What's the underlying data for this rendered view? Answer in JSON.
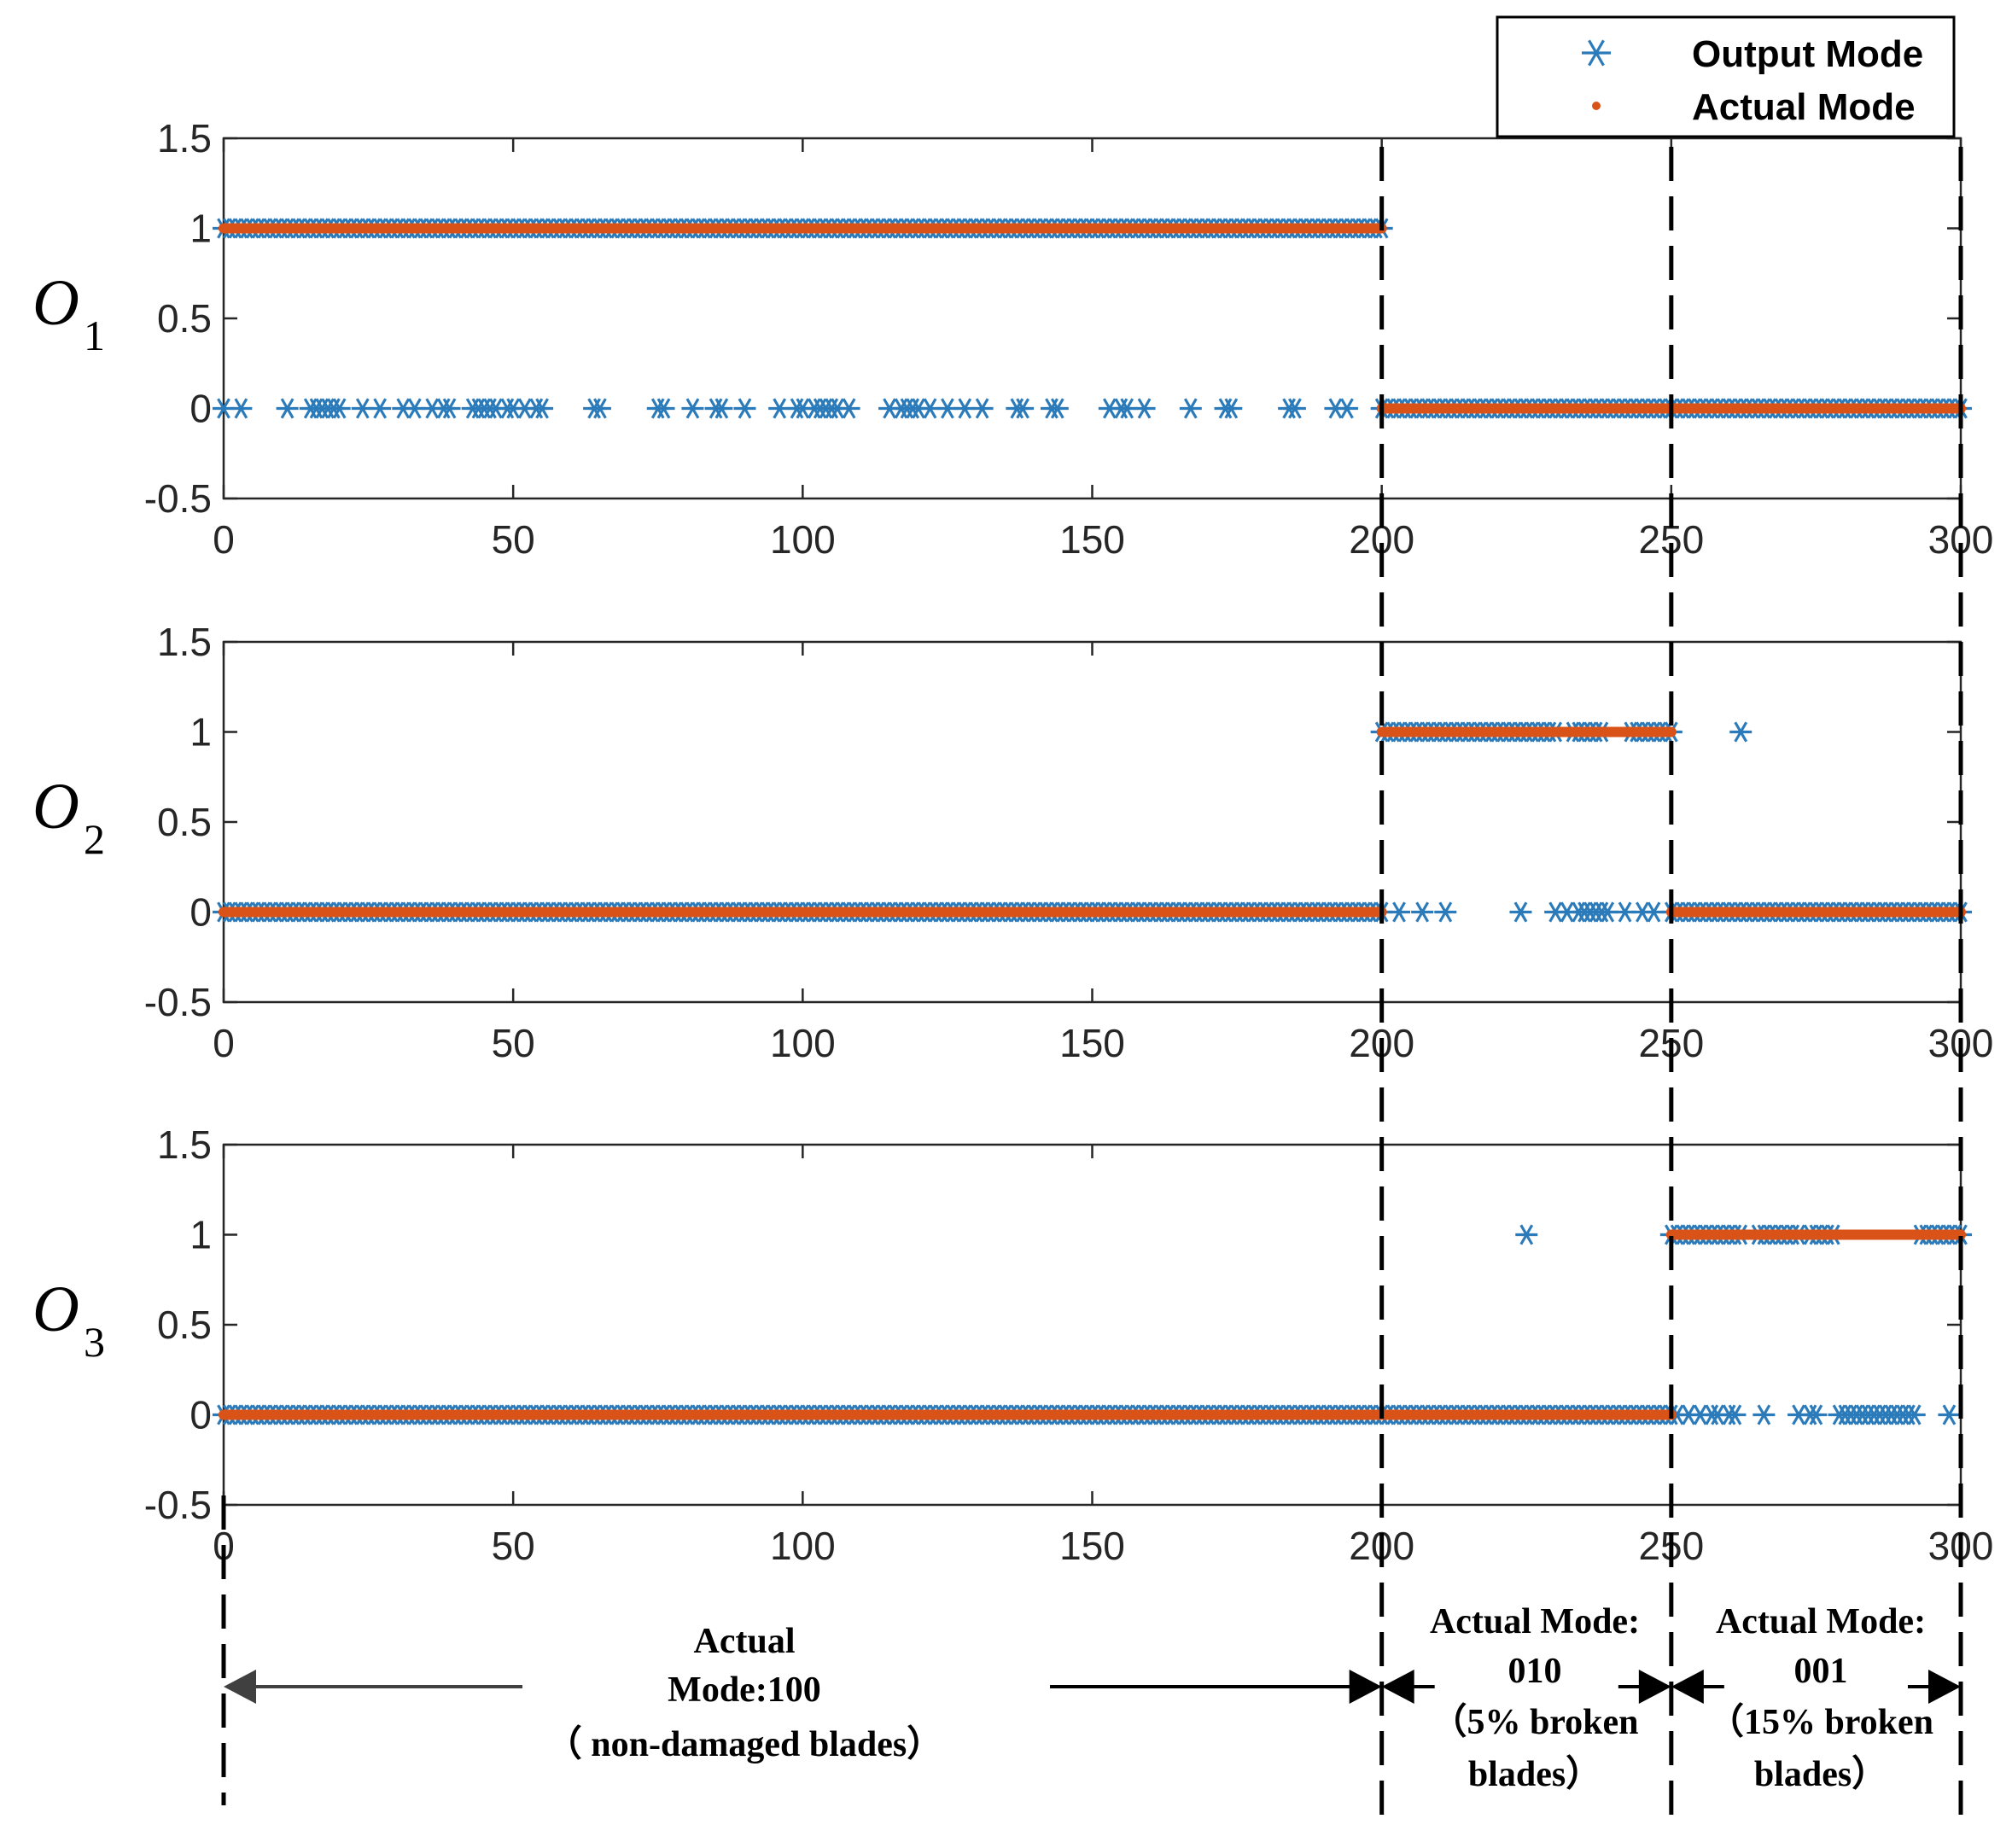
{
  "chart_data": {
    "type": "scatter",
    "colors": {
      "output": "#2b7bba",
      "actual": "#d95319",
      "axis": "#262626",
      "divider": "#000000"
    },
    "legend": {
      "placement": "top-right",
      "entries": [
        "Output Mode",
        "Actual Mode"
      ]
    },
    "x_ticks": [
      "0",
      "50",
      "100",
      "150",
      "200",
      "250",
      "300"
    ],
    "y_ticks": [
      "1.5",
      "1",
      "0.5",
      "0",
      "-0.5"
    ],
    "xlim": [
      0,
      300
    ],
    "ylim": [
      -0.5,
      1.5
    ],
    "dividers_x": [
      200,
      250,
      300
    ],
    "panels": [
      {
        "ylabel": "O",
        "ylabel_sub": "1",
        "actual": [
          {
            "x_start": 0,
            "x_end": 200,
            "y": 1
          },
          {
            "x_start": 200,
            "x_end": 300,
            "y": 0
          }
        ],
        "output_dense": [
          {
            "x_start": 0,
            "x_end": 200,
            "y": 1,
            "step": 1
          },
          {
            "x_start": 200,
            "x_end": 300,
            "y": 0,
            "step": 1
          }
        ],
        "output_points": [
          {
            "x": 0,
            "y": 0
          },
          {
            "x": 3,
            "y": 0
          },
          {
            "x": 11,
            "y": 0
          },
          {
            "x": 15,
            "y": 0
          },
          {
            "x": 16,
            "y": 0
          },
          {
            "x": 17,
            "y": 0
          },
          {
            "x": 18,
            "y": 0
          },
          {
            "x": 19,
            "y": 0
          },
          {
            "x": 20,
            "y": 0
          },
          {
            "x": 24,
            "y": 0
          },
          {
            "x": 27,
            "y": 0
          },
          {
            "x": 31,
            "y": 0
          },
          {
            "x": 33,
            "y": 0
          },
          {
            "x": 36,
            "y": 0
          },
          {
            "x": 38,
            "y": 0
          },
          {
            "x": 39,
            "y": 0
          },
          {
            "x": 43,
            "y": 0
          },
          {
            "x": 44,
            "y": 0
          },
          {
            "x": 45,
            "y": 0
          },
          {
            "x": 46,
            "y": 0
          },
          {
            "x": 47,
            "y": 0
          },
          {
            "x": 49,
            "y": 0
          },
          {
            "x": 50,
            "y": 0
          },
          {
            "x": 52,
            "y": 0
          },
          {
            "x": 54,
            "y": 0
          },
          {
            "x": 55,
            "y": 0
          },
          {
            "x": 64,
            "y": 0
          },
          {
            "x": 65,
            "y": 0
          },
          {
            "x": 75,
            "y": 0
          },
          {
            "x": 76,
            "y": 0
          },
          {
            "x": 81,
            "y": 0
          },
          {
            "x": 85,
            "y": 0
          },
          {
            "x": 86,
            "y": 0
          },
          {
            "x": 90,
            "y": 0
          },
          {
            "x": 96,
            "y": 0
          },
          {
            "x": 99,
            "y": 0
          },
          {
            "x": 100,
            "y": 0
          },
          {
            "x": 102,
            "y": 0
          },
          {
            "x": 103,
            "y": 0
          },
          {
            "x": 104,
            "y": 0
          },
          {
            "x": 105,
            "y": 0
          },
          {
            "x": 106,
            "y": 0
          },
          {
            "x": 108,
            "y": 0
          },
          {
            "x": 115,
            "y": 0
          },
          {
            "x": 117,
            "y": 0
          },
          {
            "x": 118,
            "y": 0
          },
          {
            "x": 119,
            "y": 0
          },
          {
            "x": 120,
            "y": 0
          },
          {
            "x": 122,
            "y": 0
          },
          {
            "x": 125,
            "y": 0
          },
          {
            "x": 128,
            "y": 0
          },
          {
            "x": 131,
            "y": 0
          },
          {
            "x": 137,
            "y": 0
          },
          {
            "x": 138,
            "y": 0
          },
          {
            "x": 143,
            "y": 0
          },
          {
            "x": 144,
            "y": 0
          },
          {
            "x": 153,
            "y": 0
          },
          {
            "x": 155,
            "y": 0
          },
          {
            "x": 156,
            "y": 0
          },
          {
            "x": 159,
            "y": 0
          },
          {
            "x": 167,
            "y": 0
          },
          {
            "x": 173,
            "y": 0
          },
          {
            "x": 174,
            "y": 0
          },
          {
            "x": 184,
            "y": 0
          },
          {
            "x": 185,
            "y": 0
          },
          {
            "x": 192,
            "y": 0
          },
          {
            "x": 194,
            "y": 0
          }
        ]
      },
      {
        "ylabel": "O",
        "ylabel_sub": "2",
        "actual": [
          {
            "x_start": 0,
            "x_end": 200,
            "y": 0
          },
          {
            "x_start": 200,
            "x_end": 250,
            "y": 1
          },
          {
            "x_start": 250,
            "x_end": 300,
            "y": 0
          }
        ],
        "output_dense": [
          {
            "x_start": 0,
            "x_end": 200,
            "y": 0,
            "step": 1
          },
          {
            "x_start": 200,
            "x_end": 230,
            "y": 1,
            "step": 1
          },
          {
            "x_start": 233,
            "x_end": 238,
            "y": 1,
            "step": 1
          },
          {
            "x_start": 243,
            "x_end": 250,
            "y": 1,
            "step": 1
          },
          {
            "x_start": 250,
            "x_end": 300,
            "y": 0,
            "step": 1
          }
        ],
        "output_points": [
          {
            "x": 203,
            "y": 0
          },
          {
            "x": 207,
            "y": 0
          },
          {
            "x": 211,
            "y": 0
          },
          {
            "x": 224,
            "y": 0
          },
          {
            "x": 230,
            "y": 0
          },
          {
            "x": 232,
            "y": 0
          },
          {
            "x": 234,
            "y": 0
          },
          {
            "x": 235,
            "y": 0
          },
          {
            "x": 236,
            "y": 0
          },
          {
            "x": 237,
            "y": 0
          },
          {
            "x": 238,
            "y": 0
          },
          {
            "x": 239,
            "y": 0
          },
          {
            "x": 242,
            "y": 0
          },
          {
            "x": 245,
            "y": 0
          },
          {
            "x": 247,
            "y": 0
          },
          {
            "x": 262,
            "y": 1
          }
        ]
      },
      {
        "ylabel": "O",
        "ylabel_sub": "3",
        "actual": [
          {
            "x_start": 0,
            "x_end": 250,
            "y": 0
          },
          {
            "x_start": 250,
            "x_end": 300,
            "y": 1
          }
        ],
        "output_dense": [
          {
            "x_start": 0,
            "x_end": 250,
            "y": 0,
            "step": 1
          },
          {
            "x_start": 250,
            "x_end": 262,
            "y": 1,
            "step": 1
          },
          {
            "x_start": 265,
            "x_end": 272,
            "y": 1,
            "step": 1
          },
          {
            "x_start": 274,
            "x_end": 278,
            "y": 1,
            "step": 1
          },
          {
            "x_start": 293,
            "x_end": 300,
            "y": 1,
            "step": 1
          }
        ],
        "output_points": [
          {
            "x": 225,
            "y": 1
          },
          {
            "x": 251,
            "y": 0
          },
          {
            "x": 253,
            "y": 0
          },
          {
            "x": 255,
            "y": 0
          },
          {
            "x": 257,
            "y": 0
          },
          {
            "x": 258,
            "y": 0
          },
          {
            "x": 260,
            "y": 0
          },
          {
            "x": 261,
            "y": 0
          },
          {
            "x": 266,
            "y": 0
          },
          {
            "x": 272,
            "y": 0
          },
          {
            "x": 274,
            "y": 0
          },
          {
            "x": 275,
            "y": 0
          },
          {
            "x": 279,
            "y": 0
          },
          {
            "x": 280,
            "y": 0
          },
          {
            "x": 281,
            "y": 0
          },
          {
            "x": 282,
            "y": 0
          },
          {
            "x": 283,
            "y": 0
          },
          {
            "x": 284,
            "y": 0
          },
          {
            "x": 285,
            "y": 0
          },
          {
            "x": 286,
            "y": 0
          },
          {
            "x": 287,
            "y": 0
          },
          {
            "x": 288,
            "y": 0
          },
          {
            "x": 289,
            "y": 0
          },
          {
            "x": 290,
            "y": 0
          },
          {
            "x": 291,
            "y": 0
          },
          {
            "x": 292,
            "y": 0
          },
          {
            "x": 298,
            "y": 0
          }
        ]
      }
    ],
    "annotations": [
      {
        "lines": [
          "Actual",
          "Mode:100",
          "（ non-damaged blades）"
        ],
        "x_start": 0,
        "x_end": 200
      },
      {
        "lines": [
          "Actual  Mode:",
          "010",
          "（5% broken",
          "blades）"
        ],
        "x_start": 200,
        "x_end": 250
      },
      {
        "lines": [
          "Actual  Mode:",
          "001",
          "（15% broken",
          "blades）"
        ],
        "x_start": 250,
        "x_end": 300
      }
    ]
  }
}
